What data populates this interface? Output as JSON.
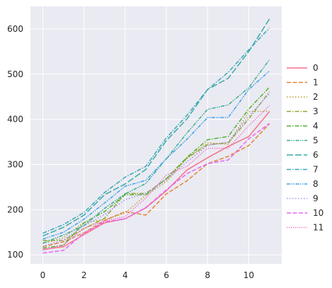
{
  "chart_data": {
    "type": "line",
    "title": "",
    "xlabel": "",
    "ylabel": "",
    "x": [
      0,
      1,
      2,
      3,
      4,
      5,
      6,
      7,
      8,
      9,
      10,
      11
    ],
    "xlim": [
      -0.6,
      11.6
    ],
    "ylim": [
      80,
      650
    ],
    "xticks": [
      0,
      2,
      4,
      6,
      8,
      10
    ],
    "yticks": [
      100,
      200,
      300,
      400,
      500,
      600
    ],
    "grid": true,
    "legend_position": "right",
    "background": "#eaeaf2",
    "series": [
      {
        "name": "0",
        "dash": "solid",
        "color": "#f77189",
        "values": [
          112,
          118,
          145,
          171,
          180,
          204,
          242,
          288,
          315,
          340,
          362,
          417
        ]
      },
      {
        "name": "1",
        "dash": "dashed",
        "color": "#e68332",
        "values": [
          118,
          129,
          149,
          176,
          196,
          188,
          235,
          264,
          302,
          318,
          342,
          390
        ]
      },
      {
        "name": "2",
        "dash": "dotted",
        "color": "#bb9832",
        "values": [
          125,
          138,
          172,
          178,
          193,
          232,
          262,
          314,
          348,
          345,
          417,
          418
        ]
      },
      {
        "name": "3",
        "dash": "dash-dot",
        "color": "#97a431",
        "values": [
          132,
          132,
          158,
          181,
          236,
          236,
          268,
          314,
          344,
          348,
          401,
          461
        ]
      },
      {
        "name": "4",
        "dash": "dash-dot",
        "color": "#50b131",
        "values": [
          115,
          121,
          171,
          196,
          233,
          233,
          269,
          316,
          355,
          362,
          423,
          471
        ]
      },
      {
        "name": "5",
        "dash": "dash-dot-dot",
        "color": "#34ae91",
        "values": [
          126,
          144,
          165,
          203,
          235,
          258,
          313,
          370,
          422,
          432,
          470,
          532
        ]
      },
      {
        "name": "6",
        "dash": "long-dash",
        "color": "#37aba4",
        "values": [
          142,
          161,
          188,
          233,
          257,
          289,
          353,
          401,
          466,
          491,
          550,
          622
        ]
      },
      {
        "name": "7",
        "dash": "dash-dot",
        "color": "#39a7b8",
        "values": [
          148,
          167,
          194,
          238,
          272,
          296,
          359,
          409,
          466,
          504,
          554,
          602
        ]
      },
      {
        "name": "8",
        "dash": "dash-dot-dot",
        "color": "#3ba3ec",
        "values": [
          135,
          150,
          179,
          215,
          252,
          265,
          313,
          356,
          404,
          404,
          466,
          507
        ]
      },
      {
        "name": "9",
        "dash": "dotted",
        "color": "#a48cf4",
        "values": [
          119,
          133,
          164,
          190,
          222,
          237,
          266,
          306,
          342,
          350,
          407,
          457
        ]
      },
      {
        "name": "10",
        "dash": "dashed",
        "color": "#e866f4",
        "values": [
          104,
          110,
          148,
          173,
          180,
          205,
          244,
          280,
          302,
          310,
          357,
          391
        ]
      },
      {
        "name": "11",
        "dash": "fine-dot",
        "color": "#f668c2",
        "values": [
          110,
          122,
          159,
          175,
          185,
          226,
          277,
          296,
          336,
          336,
          386,
          430
        ]
      }
    ]
  }
}
